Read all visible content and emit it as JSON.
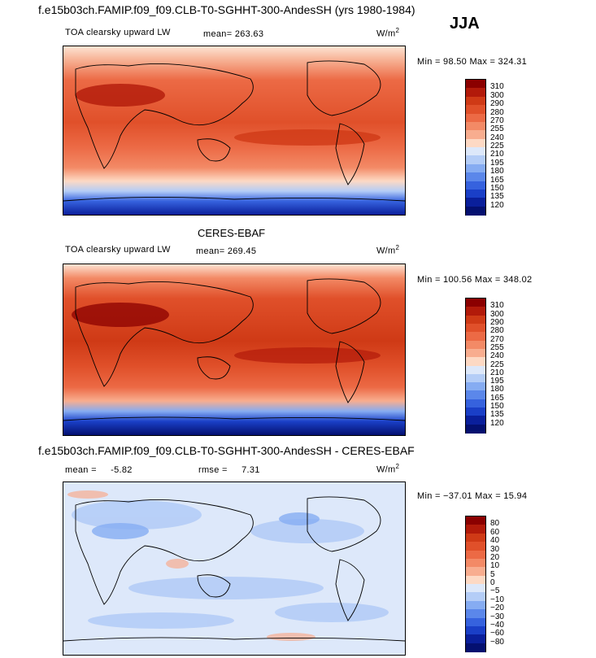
{
  "season": "JJA",
  "panels": [
    {
      "header": "f.e15b03ch.FAMIP.f09_f09.CLB-T0-SGHHT-300-AndesSH (yrs 1980-1984)",
      "variable": "TOA clearsky upward LW",
      "mean_label": "mean=",
      "mean_value": "263.63",
      "units": "W/m",
      "units_sup": "2",
      "range_text": "Min =  98.50 Max = 324.31",
      "kind": "abs"
    },
    {
      "header": "CERES-EBAF",
      "variable": "TOA clearsky upward LW",
      "mean_label": "mean=",
      "mean_value": "269.45",
      "units": "W/m",
      "units_sup": "2",
      "range_text": "Min = 100.56 Max = 348.02",
      "kind": "abs"
    },
    {
      "header": "f.e15b03ch.FAMIP.f09_f09.CLB-T0-SGHHT-300-AndesSH - CERES-EBAF",
      "mean_label": "mean =",
      "mean_value": "-5.82",
      "rmse_label": "rmse =",
      "rmse_value": "7.31",
      "units": "W/m",
      "units_sup": "2",
      "range_text": "Min = −37.01 Max =  15.94",
      "kind": "diff"
    }
  ],
  "colorbars": {
    "abs": {
      "levels": [
        "310",
        "300",
        "290",
        "280",
        "270",
        "255",
        "240",
        "225",
        "210",
        "195",
        "180",
        "165",
        "150",
        "135",
        "120"
      ],
      "colors": [
        "#8b0000",
        "#b21a0a",
        "#cf3a16",
        "#e0502a",
        "#ec6a45",
        "#f38a66",
        "#f8ad8f",
        "#fdd9c4",
        "#dde8fa",
        "#b4cdf7",
        "#86acf2",
        "#5b87ea",
        "#3662de",
        "#1a3fc7",
        "#0a1f9b",
        "#041070"
      ]
    },
    "diff": {
      "levels": [
        "80",
        "60",
        "40",
        "30",
        "20",
        "10",
        "5",
        "0",
        "−5",
        "−10",
        "−20",
        "−30",
        "−40",
        "−60",
        "−80"
      ],
      "colors": [
        "#8b0000",
        "#b21a0a",
        "#cf3a16",
        "#e0502a",
        "#ec6a45",
        "#f38a66",
        "#f8ad8f",
        "#fdd9c4",
        "#dde8fa",
        "#b4cdf7",
        "#86acf2",
        "#5b87ea",
        "#3662de",
        "#1a3fc7",
        "#0a1f9b",
        "#041070"
      ]
    }
  }
}
